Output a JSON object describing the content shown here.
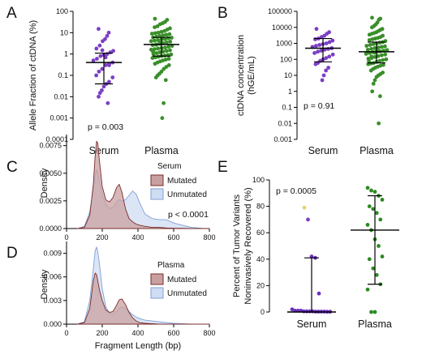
{
  "colors": {
    "serum": "#7b3fc4",
    "plasma": "#3a8f2a",
    "mutated_fill": "#c9a0a0",
    "mutated_stroke": "#7a2c2c",
    "unmutated_fill": "#cfdcf2",
    "unmutated_stroke": "#7f9fd6",
    "error_bar": "#000000",
    "panel_e_serum": "#6b2fbf",
    "panel_e_plasma": "#2e8a24",
    "panel_e_serum_outlier": "#e3d36a"
  },
  "chart_data": [
    {
      "panel": "A",
      "type": "scatter",
      "ylabel": "Allele Fraction of ctDNA (%)",
      "yscale": "log",
      "ylim": [
        0.0001,
        100
      ],
      "yticks": [
        "100",
        "10",
        "1",
        "0.1",
        "0.01",
        "0.001",
        "0.0001"
      ],
      "categories": [
        "Serum",
        "Plasma"
      ],
      "annotation": "p = 0.003",
      "series": [
        {
          "name": "Serum",
          "median": 0.4,
          "q1": 0.04,
          "q3": 1.1,
          "values": [
            15,
            10,
            7,
            5,
            4,
            2.5,
            1.8,
            1.4,
            1.2,
            1.0,
            0.9,
            0.8,
            0.6,
            0.5,
            0.4,
            0.35,
            0.3,
            0.2,
            0.15,
            0.1,
            0.08,
            0.05,
            0.04,
            0.03,
            0.02,
            0.015,
            0.01,
            0.005,
            0.3,
            0.7,
            1.5
          ]
        },
        {
          "name": "Plasma",
          "median": 2.8,
          "q1": 0.8,
          "q3": 6.0,
          "values": [
            45,
            40,
            32,
            28,
            25,
            20,
            18,
            16,
            14,
            12,
            11,
            10,
            9.5,
            9,
            8.5,
            8,
            7.5,
            7,
            6.5,
            6,
            5.8,
            5.5,
            5,
            4.8,
            4.5,
            4.2,
            4,
            3.8,
            3.5,
            3.2,
            3,
            2.8,
            2.6,
            2.4,
            2.2,
            2,
            1.9,
            1.8,
            1.7,
            1.6,
            1.5,
            1.4,
            1.3,
            1.2,
            1.1,
            1.0,
            0.95,
            0.9,
            0.85,
            0.8,
            0.75,
            0.7,
            0.65,
            0.6,
            0.55,
            0.5,
            0.45,
            0.4,
            0.35,
            0.3,
            0.25,
            0.2,
            0.15,
            0.12,
            0.1,
            0.08,
            0.06,
            0.005,
            0.001,
            3.3,
            2.7,
            1.25
          ]
        }
      ]
    },
    {
      "panel": "B",
      "type": "scatter",
      "ylabel": "ctDNA concentration (hGE/mL)",
      "ylabel_lines": [
        "ctDNA concentration",
        "(hGE/mL)"
      ],
      "yscale": "log",
      "ylim": [
        0.001,
        100000
      ],
      "yticks": [
        "100000",
        "10000",
        "1000",
        "100",
        "10",
        "1",
        "0.1",
        "0.01",
        "0.001"
      ],
      "categories": [
        "Serum",
        "Plasma"
      ],
      "annotation": "p = 0.91",
      "series": [
        {
          "name": "Serum",
          "median": 500,
          "q1": 70,
          "q3": 2000,
          "values": [
            8000,
            5000,
            4000,
            3000,
            2500,
            2000,
            1800,
            1500,
            1200,
            1000,
            900,
            800,
            700,
            600,
            500,
            450,
            400,
            350,
            300,
            250,
            200,
            150,
            120,
            100,
            80,
            60,
            50,
            30,
            20,
            10,
            5
          ]
        },
        {
          "name": "Plasma",
          "median": 300,
          "q1": 60,
          "q3": 1200,
          "values": [
            40000,
            35000,
            30000,
            20000,
            15000,
            12000,
            10000,
            8000,
            7000,
            6000,
            5000,
            4500,
            4000,
            3500,
            3000,
            2500,
            2200,
            2000,
            1800,
            1600,
            1400,
            1200,
            1100,
            1000,
            900,
            800,
            700,
            650,
            600,
            550,
            500,
            450,
            400,
            380,
            350,
            320,
            300,
            280,
            250,
            220,
            200,
            180,
            160,
            140,
            120,
            110,
            100,
            90,
            80,
            70,
            60,
            55,
            50,
            45,
            40,
            35,
            30,
            25,
            20,
            15,
            12,
            10,
            8,
            5,
            3,
            1,
            0.5,
            0.01,
            320,
            260,
            150,
            75
          ]
        }
      ]
    },
    {
      "panel": "C",
      "type": "area",
      "ylabel": "Density",
      "ylim": [
        0,
        0.0085
      ],
      "yticks": [
        "0.0075",
        "0.0050",
        "0.0025",
        "0.0000"
      ],
      "xlim": [
        0,
        800
      ],
      "xticks": [
        "0",
        "200",
        "400",
        "600",
        "800"
      ],
      "legend_title": "Serum",
      "legend_placement": "top-right",
      "annotation": "p < 0.0001",
      "x": [
        60,
        100,
        130,
        150,
        160,
        168,
        175,
        185,
        200,
        220,
        240,
        260,
        280,
        295,
        310,
        330,
        350,
        370,
        390,
        410,
        440,
        480,
        520,
        560,
        600,
        650,
        700,
        760,
        800
      ],
      "series": [
        {
          "name": "Mutated",
          "values": [
            0,
            0.0001,
            0.0012,
            0.004,
            0.0065,
            0.0079,
            0.0077,
            0.006,
            0.0038,
            0.0026,
            0.0024,
            0.0028,
            0.0037,
            0.004,
            0.0033,
            0.0018,
            0.0009,
            0.0006,
            0.0004,
            0.0003,
            0.0002,
            0.0001,
            0.0001,
            5e-05,
            3e-05,
            2e-05,
            1e-05,
            0,
            0
          ]
        },
        {
          "name": "Unmutated",
          "values": [
            0,
            0.0002,
            0.0015,
            0.0035,
            0.0048,
            0.0053,
            0.005,
            0.0042,
            0.003,
            0.0022,
            0.0018,
            0.0019,
            0.0024,
            0.0026,
            0.0025,
            0.0026,
            0.003,
            0.0034,
            0.0031,
            0.0023,
            0.0013,
            0.0009,
            0.0008,
            0.0008,
            0.0005,
            0.0003,
            0.0001,
            2e-05,
            0
          ]
        }
      ]
    },
    {
      "panel": "D",
      "type": "area",
      "ylabel": "Density",
      "xlabel": "Fragment Length (bp)",
      "ylim": [
        0,
        0.0105
      ],
      "yticks": [
        "0.009",
        "0.006",
        "0.003",
        "0.000"
      ],
      "xlim": [
        0,
        800
      ],
      "xticks": [
        "0",
        "200",
        "400",
        "600",
        "800"
      ],
      "legend_title": "Plasma",
      "legend_placement": "top-right",
      "x": [
        60,
        100,
        130,
        150,
        160,
        168,
        175,
        185,
        200,
        220,
        240,
        260,
        280,
        295,
        310,
        330,
        350,
        370,
        390,
        410,
        440,
        480,
        520,
        560,
        600,
        650,
        700,
        760,
        800
      ],
      "series": [
        {
          "name": "Mutated",
          "values": [
            0,
            0.0002,
            0.002,
            0.0055,
            0.0065,
            0.0063,
            0.0055,
            0.0043,
            0.003,
            0.0018,
            0.0015,
            0.0016,
            0.0024,
            0.0031,
            0.0032,
            0.0025,
            0.0015,
            0.0008,
            0.0004,
            0.0002,
            0.0001,
            5e-05,
            0,
            0,
            0,
            0,
            0,
            0,
            0
          ]
        },
        {
          "name": "Unmutated",
          "values": [
            0,
            0.0003,
            0.003,
            0.007,
            0.0093,
            0.0098,
            0.0092,
            0.0075,
            0.0045,
            0.0022,
            0.0014,
            0.0012,
            0.0016,
            0.002,
            0.0022,
            0.002,
            0.0016,
            0.0012,
            0.0009,
            0.0007,
            0.0005,
            0.0004,
            0.0003,
            0.0002,
            0.0001,
            5e-05,
            0,
            0,
            0
          ]
        }
      ]
    },
    {
      "panel": "E",
      "type": "scatter",
      "ylabel_lines": [
        "Percent of Tumor Variants",
        "Noninvasively Recovered (%)"
      ],
      "ylim": [
        0,
        100
      ],
      "yticks": [
        "100",
        "80",
        "60",
        "40",
        "20",
        "0"
      ],
      "categories": [
        "Serum",
        "Plasma"
      ],
      "annotation": "p = 0.0005",
      "series": [
        {
          "name": "Serum",
          "median": 0,
          "q1": 0,
          "q3": 41,
          "values": [
            79,
            70,
            42,
            41,
            14,
            2,
            1,
            1,
            1,
            0.5,
            0.5,
            0.5,
            0.5,
            0.3,
            0.3,
            0.3,
            0.3,
            0.2,
            0.2
          ]
        },
        {
          "name": "Plasma",
          "median": 62,
          "q1": 21,
          "q3": 88,
          "values": [
            94,
            92,
            91,
            88,
            85,
            80,
            78,
            75,
            70,
            66,
            62,
            55,
            50,
            42,
            40,
            33,
            28,
            21,
            17,
            0,
            0
          ]
        }
      ]
    }
  ],
  "letters": [
    "A",
    "B",
    "C",
    "D",
    "E"
  ]
}
